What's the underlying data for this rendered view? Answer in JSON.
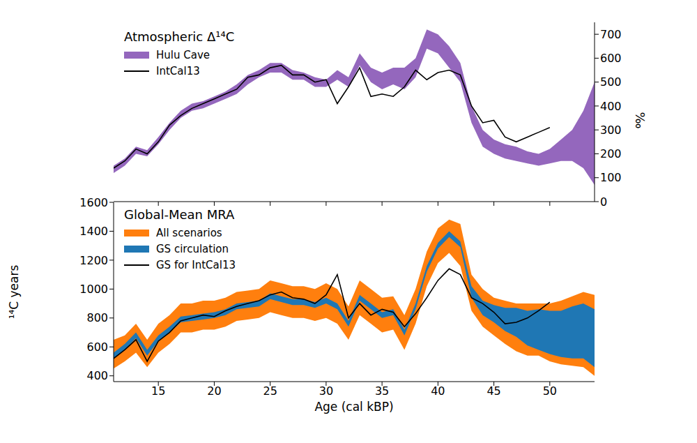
{
  "chart_data": [
    {
      "type": "line",
      "title": "Atmospheric Δ¹⁴C",
      "ylabel": "‰",
      "legend": "upper left",
      "tick_labels": "y",
      "x": [
        11,
        12,
        13,
        14,
        15,
        16,
        17,
        18,
        19,
        20,
        21,
        22,
        23,
        24,
        25,
        26,
        27,
        28,
        29,
        30,
        31,
        32,
        33,
        34,
        35,
        36,
        37,
        38,
        39,
        40,
        41,
        42,
        43,
        44,
        45,
        46,
        47,
        48,
        49,
        50,
        51,
        52,
        53,
        54
      ],
      "xlim": [
        11,
        54
      ],
      "xticks": [
        15,
        20,
        25,
        30,
        35,
        40,
        45,
        50
      ],
      "ylim": [
        0,
        750
      ],
      "yticks": [
        0,
        100,
        200,
        300,
        400,
        500,
        600,
        700
      ],
      "series": [
        {
          "name": "Hulu Cave",
          "type": "area",
          "color": "#9467bd",
          "values": [
            [
              120,
              150
            ],
            [
              150,
              180
            ],
            [
              200,
              230
            ],
            [
              190,
              215
            ],
            [
              240,
              270
            ],
            [
              300,
              330
            ],
            [
              350,
              380
            ],
            [
              380,
              410
            ],
            [
              390,
              420
            ],
            [
              410,
              440
            ],
            [
              430,
              460
            ],
            [
              450,
              490
            ],
            [
              490,
              530
            ],
            [
              520,
              550
            ],
            [
              540,
              580
            ],
            [
              540,
              580
            ],
            [
              510,
              550
            ],
            [
              510,
              540
            ],
            [
              480,
              520
            ],
            [
              480,
              510
            ],
            [
              510,
              550
            ],
            [
              480,
              520
            ],
            [
              570,
              620
            ],
            [
              500,
              560
            ],
            [
              470,
              540
            ],
            [
              490,
              560
            ],
            [
              470,
              560
            ],
            [
              520,
              600
            ],
            [
              640,
              720
            ],
            [
              620,
              700
            ],
            [
              560,
              650
            ],
            [
              500,
              580
            ],
            [
              330,
              400
            ],
            [
              230,
              300
            ],
            [
              200,
              260
            ],
            [
              180,
              240
            ],
            [
              170,
              230
            ],
            [
              160,
              210
            ],
            [
              150,
              200
            ],
            [
              160,
              220
            ],
            [
              170,
              260
            ],
            [
              170,
              300
            ],
            [
              140,
              380
            ],
            [
              70,
              500
            ]
          ]
        },
        {
          "name": "IntCal13",
          "type": "line",
          "color": "#000000",
          "values": [
            140,
            170,
            220,
            200,
            250,
            320,
            360,
            390,
            410,
            430,
            450,
            470,
            520,
            530,
            560,
            570,
            530,
            530,
            500,
            510,
            410,
            480,
            560,
            440,
            450,
            440,
            480,
            550,
            510,
            540,
            550,
            530,
            400,
            330,
            340,
            270,
            250,
            270,
            290,
            310,
            null,
            null,
            null,
            null
          ]
        }
      ]
    },
    {
      "type": "line",
      "title": "Global-Mean MRA",
      "xlabel": "Age (cal kBP)",
      "ylabel": "¹⁴C years",
      "legend": "upper left",
      "x": [
        11,
        12,
        13,
        14,
        15,
        16,
        17,
        18,
        19,
        20,
        21,
        22,
        23,
        24,
        25,
        26,
        27,
        28,
        29,
        30,
        31,
        32,
        33,
        34,
        35,
        36,
        37,
        38,
        39,
        40,
        41,
        42,
        43,
        44,
        45,
        46,
        47,
        48,
        49,
        50,
        51,
        52,
        53,
        54
      ],
      "xlim": [
        11,
        54
      ],
      "xticks": [
        15,
        20,
        25,
        30,
        35,
        40,
        45,
        50
      ],
      "ylim": [
        360,
        1600
      ],
      "yticks": [
        400,
        600,
        800,
        1000,
        1200,
        1400,
        1600
      ],
      "series": [
        {
          "name": "All scenarios",
          "type": "area",
          "color": "#ff7f0e",
          "values": [
            [
              450,
              650
            ],
            [
              500,
              680
            ],
            [
              560,
              760
            ],
            [
              460,
              650
            ],
            [
              560,
              760
            ],
            [
              620,
              820
            ],
            [
              700,
              900
            ],
            [
              700,
              900
            ],
            [
              720,
              920
            ],
            [
              720,
              920
            ],
            [
              740,
              940
            ],
            [
              780,
              980
            ],
            [
              790,
              990
            ],
            [
              800,
              1000
            ],
            [
              840,
              1060
            ],
            [
              820,
              1040
            ],
            [
              800,
              1020
            ],
            [
              800,
              1020
            ],
            [
              780,
              1000
            ],
            [
              800,
              1040
            ],
            [
              760,
              1000
            ],
            [
              650,
              880
            ],
            [
              820,
              1060
            ],
            [
              760,
              1000
            ],
            [
              700,
              940
            ],
            [
              720,
              950
            ],
            [
              580,
              820
            ],
            [
              760,
              1000
            ],
            [
              1020,
              1260
            ],
            [
              1180,
              1420
            ],
            [
              1250,
              1480
            ],
            [
              1160,
              1450
            ],
            [
              850,
              1100
            ],
            [
              740,
              1000
            ],
            [
              680,
              940
            ],
            [
              620,
              920
            ],
            [
              570,
              900
            ],
            [
              540,
              900
            ],
            [
              540,
              900
            ],
            [
              500,
              900
            ],
            [
              480,
              920
            ],
            [
              470,
              950
            ],
            [
              460,
              980
            ],
            [
              400,
              960
            ]
          ]
        },
        {
          "name": "GS circulation",
          "type": "area",
          "color": "#1f77b4",
          "values": [
            [
              520,
              560
            ],
            [
              580,
              620
            ],
            [
              660,
              700
            ],
            [
              540,
              580
            ],
            [
              640,
              680
            ],
            [
              700,
              740
            ],
            [
              770,
              810
            ],
            [
              780,
              820
            ],
            [
              790,
              830
            ],
            [
              800,
              840
            ],
            [
              820,
              860
            ],
            [
              860,
              900
            ],
            [
              870,
              910
            ],
            [
              880,
              920
            ],
            [
              930,
              970
            ],
            [
              910,
              950
            ],
            [
              890,
              930
            ],
            [
              890,
              930
            ],
            [
              870,
              910
            ],
            [
              900,
              940
            ],
            [
              860,
              900
            ],
            [
              740,
              780
            ],
            [
              920,
              960
            ],
            [
              860,
              900
            ],
            [
              800,
              840
            ],
            [
              820,
              860
            ],
            [
              680,
              720
            ],
            [
              860,
              900
            ],
            [
              1120,
              1160
            ],
            [
              1280,
              1320
            ],
            [
              1360,
              1400
            ],
            [
              1290,
              1330
            ],
            [
              940,
              1020
            ],
            [
              820,
              920
            ],
            [
              770,
              890
            ],
            [
              710,
              870
            ],
            [
              670,
              870
            ],
            [
              610,
              850
            ],
            [
              580,
              860
            ],
            [
              550,
              850
            ],
            [
              530,
              850
            ],
            [
              520,
              880
            ],
            [
              520,
              900
            ],
            [
              460,
              860
            ]
          ]
        },
        {
          "name": "GS for IntCal13",
          "type": "line",
          "color": "#000000",
          "values": [
            520,
            580,
            650,
            500,
            640,
            700,
            780,
            800,
            820,
            810,
            850,
            880,
            900,
            920,
            960,
            980,
            940,
            930,
            900,
            960,
            1100,
            800,
            900,
            820,
            860,
            840,
            740,
            830,
            940,
            1060,
            1140,
            1100,
            940,
            900,
            840,
            760,
            770,
            800,
            850,
            910,
            null,
            null,
            null,
            null
          ]
        }
      ]
    }
  ]
}
